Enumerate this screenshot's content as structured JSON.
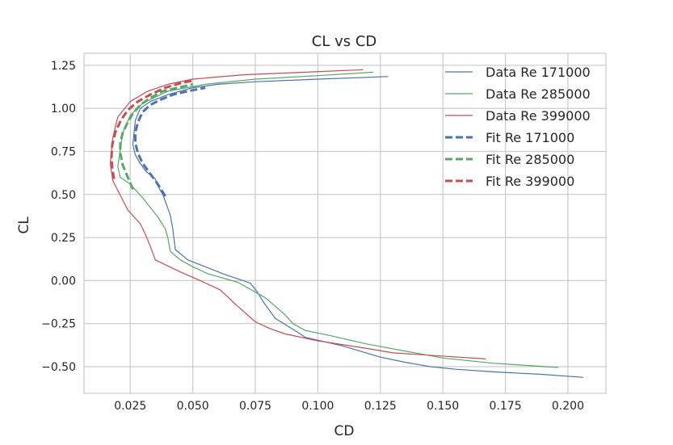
{
  "chart_data": {
    "type": "line",
    "title": "CL vs CD",
    "xlabel": "CD",
    "ylabel": "CL",
    "xlim": [
      0.0065,
      0.2152
    ],
    "ylim": [
      -0.655,
      1.32
    ],
    "xticks": [
      0.025,
      0.05,
      0.075,
      0.1,
      0.125,
      0.15,
      0.175,
      0.2
    ],
    "xtick_labels": [
      "0.025",
      "0.050",
      "0.075",
      "0.100",
      "0.125",
      "0.150",
      "0.175",
      "0.200"
    ],
    "yticks": [
      1.25,
      1.0,
      0.75,
      0.5,
      0.25,
      0.0,
      -0.25,
      -0.5
    ],
    "ytick_labels": [
      "1.25",
      "1.00",
      "0.75",
      "0.50",
      "0.25",
      "0.00",
      "−0.25",
      "−0.50"
    ],
    "grid": true,
    "legend_position": "top-right",
    "series": [
      {
        "name": "Data Re 171000",
        "style": "solid",
        "color": "#4C72B0",
        "x": [
          0.206,
          0.19,
          0.17,
          0.155,
          0.145,
          0.135,
          0.125,
          0.11,
          0.095,
          0.093,
          0.083,
          0.078,
          0.076,
          0.073,
          0.062,
          0.055,
          0.048,
          0.043,
          0.042,
          0.041,
          0.038,
          0.036,
          0.035,
          0.034,
          0.031,
          0.029,
          0.027,
          0.026,
          0.027,
          0.029,
          0.033,
          0.04,
          0.05,
          0.06,
          0.075,
          0.1,
          0.128
        ],
        "y": [
          -0.562,
          -0.545,
          -0.53,
          -0.515,
          -0.5,
          -0.475,
          -0.445,
          -0.38,
          -0.33,
          -0.31,
          -0.22,
          -0.12,
          -0.07,
          -0.015,
          0.04,
          0.08,
          0.12,
          0.18,
          0.3,
          0.38,
          0.5,
          0.55,
          0.59,
          0.6,
          0.64,
          0.68,
          0.73,
          0.79,
          0.93,
          1.0,
          1.04,
          1.08,
          1.12,
          1.14,
          1.155,
          1.17,
          1.185
        ]
      },
      {
        "name": "Data Re 285000",
        "style": "solid",
        "color": "#55A868",
        "x": [
          0.196,
          0.17,
          0.15,
          0.12,
          0.105,
          0.095,
          0.09,
          0.087,
          0.079,
          0.068,
          0.056,
          0.05,
          0.045,
          0.041,
          0.04,
          0.039,
          0.036,
          0.03,
          0.025,
          0.021,
          0.02,
          0.021,
          0.022,
          0.025,
          0.03,
          0.04,
          0.055,
          0.075,
          0.1,
          0.122
        ],
        "y": [
          -0.505,
          -0.48,
          -0.45,
          -0.37,
          -0.32,
          -0.29,
          -0.25,
          -0.2,
          -0.1,
          -0.01,
          0.04,
          0.08,
          0.12,
          0.17,
          0.25,
          0.3,
          0.37,
          0.48,
          0.56,
          0.6,
          0.66,
          0.76,
          0.86,
          0.96,
          1.03,
          1.1,
          1.14,
          1.17,
          1.19,
          1.21
        ]
      },
      {
        "name": "Data Re 399000",
        "style": "solid",
        "color": "#C44E52",
        "x": [
          0.167,
          0.13,
          0.12,
          0.1,
          0.087,
          0.081,
          0.075,
          0.068,
          0.061,
          0.053,
          0.045,
          0.035,
          0.033,
          0.031,
          0.029,
          0.024,
          0.018,
          0.017,
          0.018,
          0.02,
          0.025,
          0.032,
          0.04,
          0.05,
          0.07,
          0.095,
          0.118
        ],
        "y": [
          -0.455,
          -0.42,
          -0.395,
          -0.35,
          -0.31,
          -0.28,
          -0.24,
          -0.15,
          -0.055,
          0.0,
          0.05,
          0.12,
          0.2,
          0.27,
          0.33,
          0.41,
          0.58,
          0.68,
          0.83,
          0.95,
          1.04,
          1.1,
          1.14,
          1.17,
          1.195,
          1.21,
          1.225
        ]
      },
      {
        "name": "Fit Re 171000",
        "style": "dashed",
        "color": "#4C72B0",
        "x": [
          0.039,
          0.036,
          0.033,
          0.03,
          0.028,
          0.027,
          0.027,
          0.028,
          0.03,
          0.033,
          0.037,
          0.042,
          0.048,
          0.055
        ],
        "y": [
          0.49,
          0.56,
          0.62,
          0.68,
          0.74,
          0.8,
          0.86,
          0.92,
          0.98,
          1.02,
          1.05,
          1.08,
          1.1,
          1.12
        ]
      },
      {
        "name": "Fit Re 285000",
        "style": "dashed",
        "color": "#55A868",
        "x": [
          0.026,
          0.024,
          0.022,
          0.021,
          0.021,
          0.022,
          0.024,
          0.026,
          0.029,
          0.033,
          0.038,
          0.044,
          0.05
        ],
        "y": [
          0.53,
          0.6,
          0.67,
          0.74,
          0.8,
          0.86,
          0.92,
          0.97,
          1.02,
          1.06,
          1.1,
          1.12,
          1.14
        ]
      },
      {
        "name": "Fit Re 399000",
        "style": "dashed",
        "color": "#C44E52",
        "x": [
          0.0185,
          0.0178,
          0.0175,
          0.0178,
          0.019,
          0.0212,
          0.024,
          0.028,
          0.033,
          0.039,
          0.046,
          0.05
        ],
        "y": [
          0.59,
          0.65,
          0.72,
          0.79,
          0.86,
          0.93,
          0.99,
          1.04,
          1.08,
          1.12,
          1.15,
          1.16
        ]
      }
    ]
  }
}
